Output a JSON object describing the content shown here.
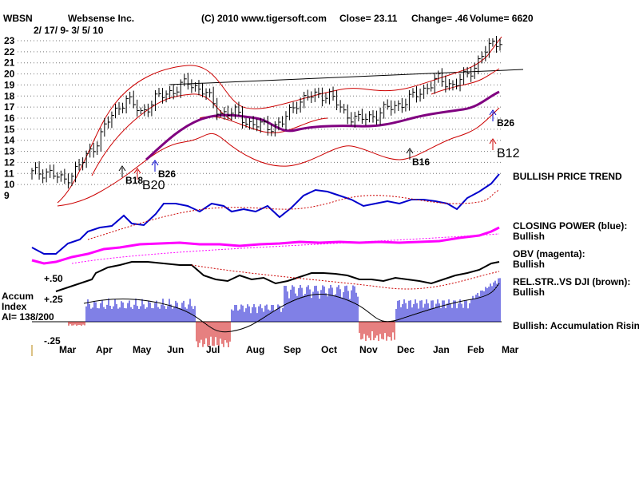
{
  "header": {
    "symbol": "WBSN",
    "company": "Websense Inc.",
    "copyright": "(C) 2010 www.tigersoft.com",
    "close": "Close=  23.11",
    "change": "Change= .46",
    "volume": "Volume= 6620",
    "date_range": "2/ 17/ 9- 3/ 5/ 10"
  },
  "labels": {
    "bullish_trend": "BULLISH PRICE TREND",
    "closing_power_title": "CLOSING POWER (blue):",
    "closing_power_status": "Bullish",
    "obv_title": "OBV (magenta):",
    "obv_status": "Bullish",
    "relstr_title": "REL.STR..VS DJI (brown):",
    "relstr_status": "Bullish",
    "accum_status": "Bullish: Accumulation Rising",
    "accum_line1": "Accum",
    "accum_line2": "Index",
    "accum_line3": "AI= 138/200",
    "acc_plus50": "+.50",
    "acc_plus25": "+.25",
    "acc_minus25": "-.25"
  },
  "signals": [
    {
      "text": "B18",
      "color": "#000000"
    },
    {
      "text": "B20",
      "color": "#000000"
    },
    {
      "text": "B26",
      "color": "#000000"
    },
    {
      "text": "B16",
      "color": "#000000"
    },
    {
      "text": "B26",
      "color": "#000000"
    },
    {
      "text": "B12",
      "color": "#000000"
    }
  ],
  "colors": {
    "price_bars": "#000000",
    "bands": "#cc0000",
    "moving_avg": "#800080",
    "closing_power": "#0000cc",
    "obv": "#ff00ff",
    "relstr": "#000000",
    "accum_positive": "#0000cc",
    "accum_negative": "#cc0000"
  },
  "chart_data": {
    "type": "line",
    "title": "Websense Inc.",
    "x_ticks": [
      "Mar",
      "Apr",
      "May",
      "Jun",
      "Jul",
      "Aug",
      "Sep",
      "Oct",
      "Nov",
      "Dec",
      "Jan",
      "Feb",
      "Mar"
    ],
    "y_ticks": [
      9,
      10,
      11,
      12,
      13,
      14,
      15,
      16,
      17,
      18,
      19,
      20,
      21,
      22,
      23
    ],
    "ylim": [
      9,
      23
    ],
    "grid": true,
    "series": [
      {
        "values": [
          11.0,
          11.2,
          10.3,
          11.6,
          13.5,
          16.0,
          17.8,
          16.5,
          17.8,
          18.5,
          19.2,
          18.5,
          16.5,
          16.5,
          15.5,
          15.2,
          15.5,
          17.5,
          18.0,
          18.2,
          16.5,
          15.8,
          16.3,
          17.0,
          17.5,
          18.5,
          19.5,
          19.0,
          20.0,
          22.0,
          23.1
        ]
      }
    ]
  }
}
